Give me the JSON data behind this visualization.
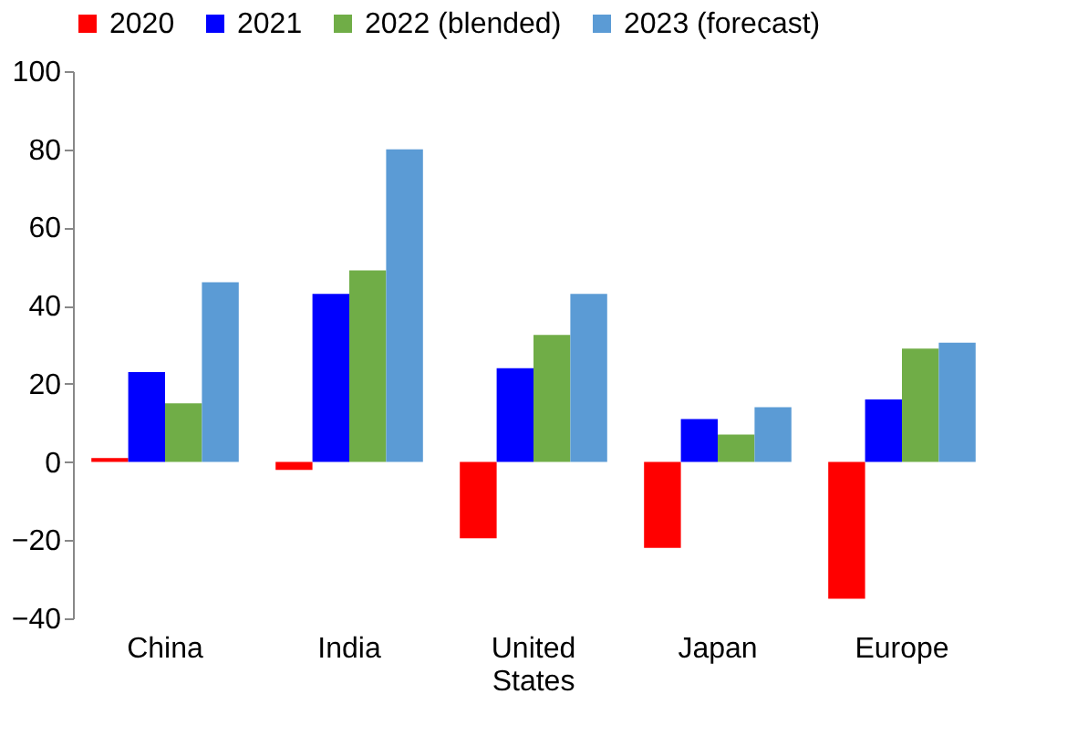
{
  "chart_data": {
    "type": "bar",
    "categories": [
      "China",
      "India",
      "United States",
      "Japan",
      "Europe"
    ],
    "series": [
      {
        "name": "2020",
        "color": "#ff0000",
        "values": [
          1,
          -2,
          -19.5,
          -22,
          -35
        ]
      },
      {
        "name": "2021",
        "color": "#0000ff",
        "values": [
          23,
          43,
          24,
          11,
          16
        ]
      },
      {
        "name": "2022 (blended)",
        "color": "#70ad47",
        "values": [
          15,
          49,
          32.5,
          7,
          29
        ]
      },
      {
        "name": "2023 (forecast)",
        "color": "#5b9bd5",
        "values": [
          46,
          80,
          43,
          14,
          30.5
        ]
      }
    ],
    "ylim": [
      -40,
      100
    ],
    "yticks": [
      -40,
      -20,
      0,
      20,
      40,
      60,
      80,
      100
    ],
    "grid": false,
    "legend": "top"
  }
}
